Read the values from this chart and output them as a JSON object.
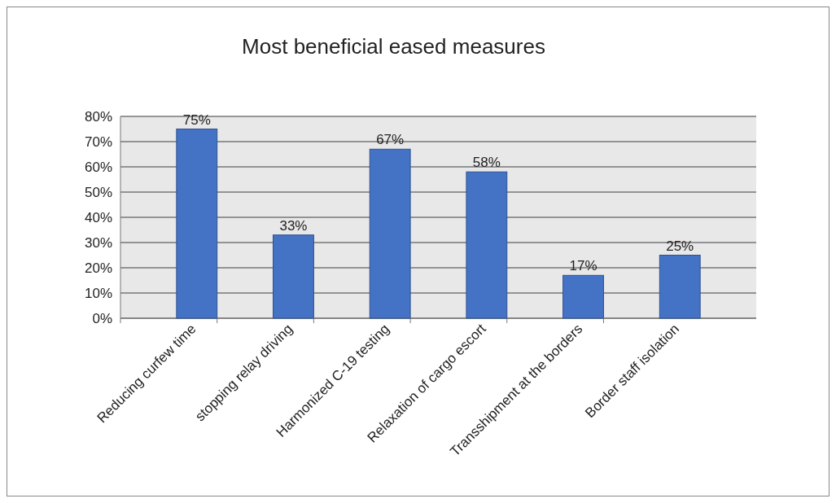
{
  "chart_data": {
    "type": "bar",
    "title": "Most beneficial eased measures",
    "categories": [
      "Reducing curfew time",
      "stopping relay driving",
      "Harmonized C-19 testing",
      "Relaxation of cargo escort",
      "Transshipment at the borders",
      "Border staff isolation"
    ],
    "values": [
      75,
      33,
      67,
      58,
      17,
      25
    ],
    "value_labels": [
      "75%",
      "33%",
      "67%",
      "58%",
      "17%",
      "25%"
    ],
    "color": "#4472c4",
    "ylim": [
      0,
      80
    ],
    "yticks": [
      {
        "value": 0,
        "label": "0%"
      },
      {
        "value": 10,
        "label": "10%"
      },
      {
        "value": 20,
        "label": "20%"
      },
      {
        "value": 30,
        "label": "30%"
      },
      {
        "value": 40,
        "label": "40%"
      },
      {
        "value": 50,
        "label": "50%"
      },
      {
        "value": 60,
        "label": "60%"
      },
      {
        "value": 70,
        "label": "70%"
      },
      {
        "value": 80,
        "label": "80%"
      }
    ],
    "grid": true
  }
}
